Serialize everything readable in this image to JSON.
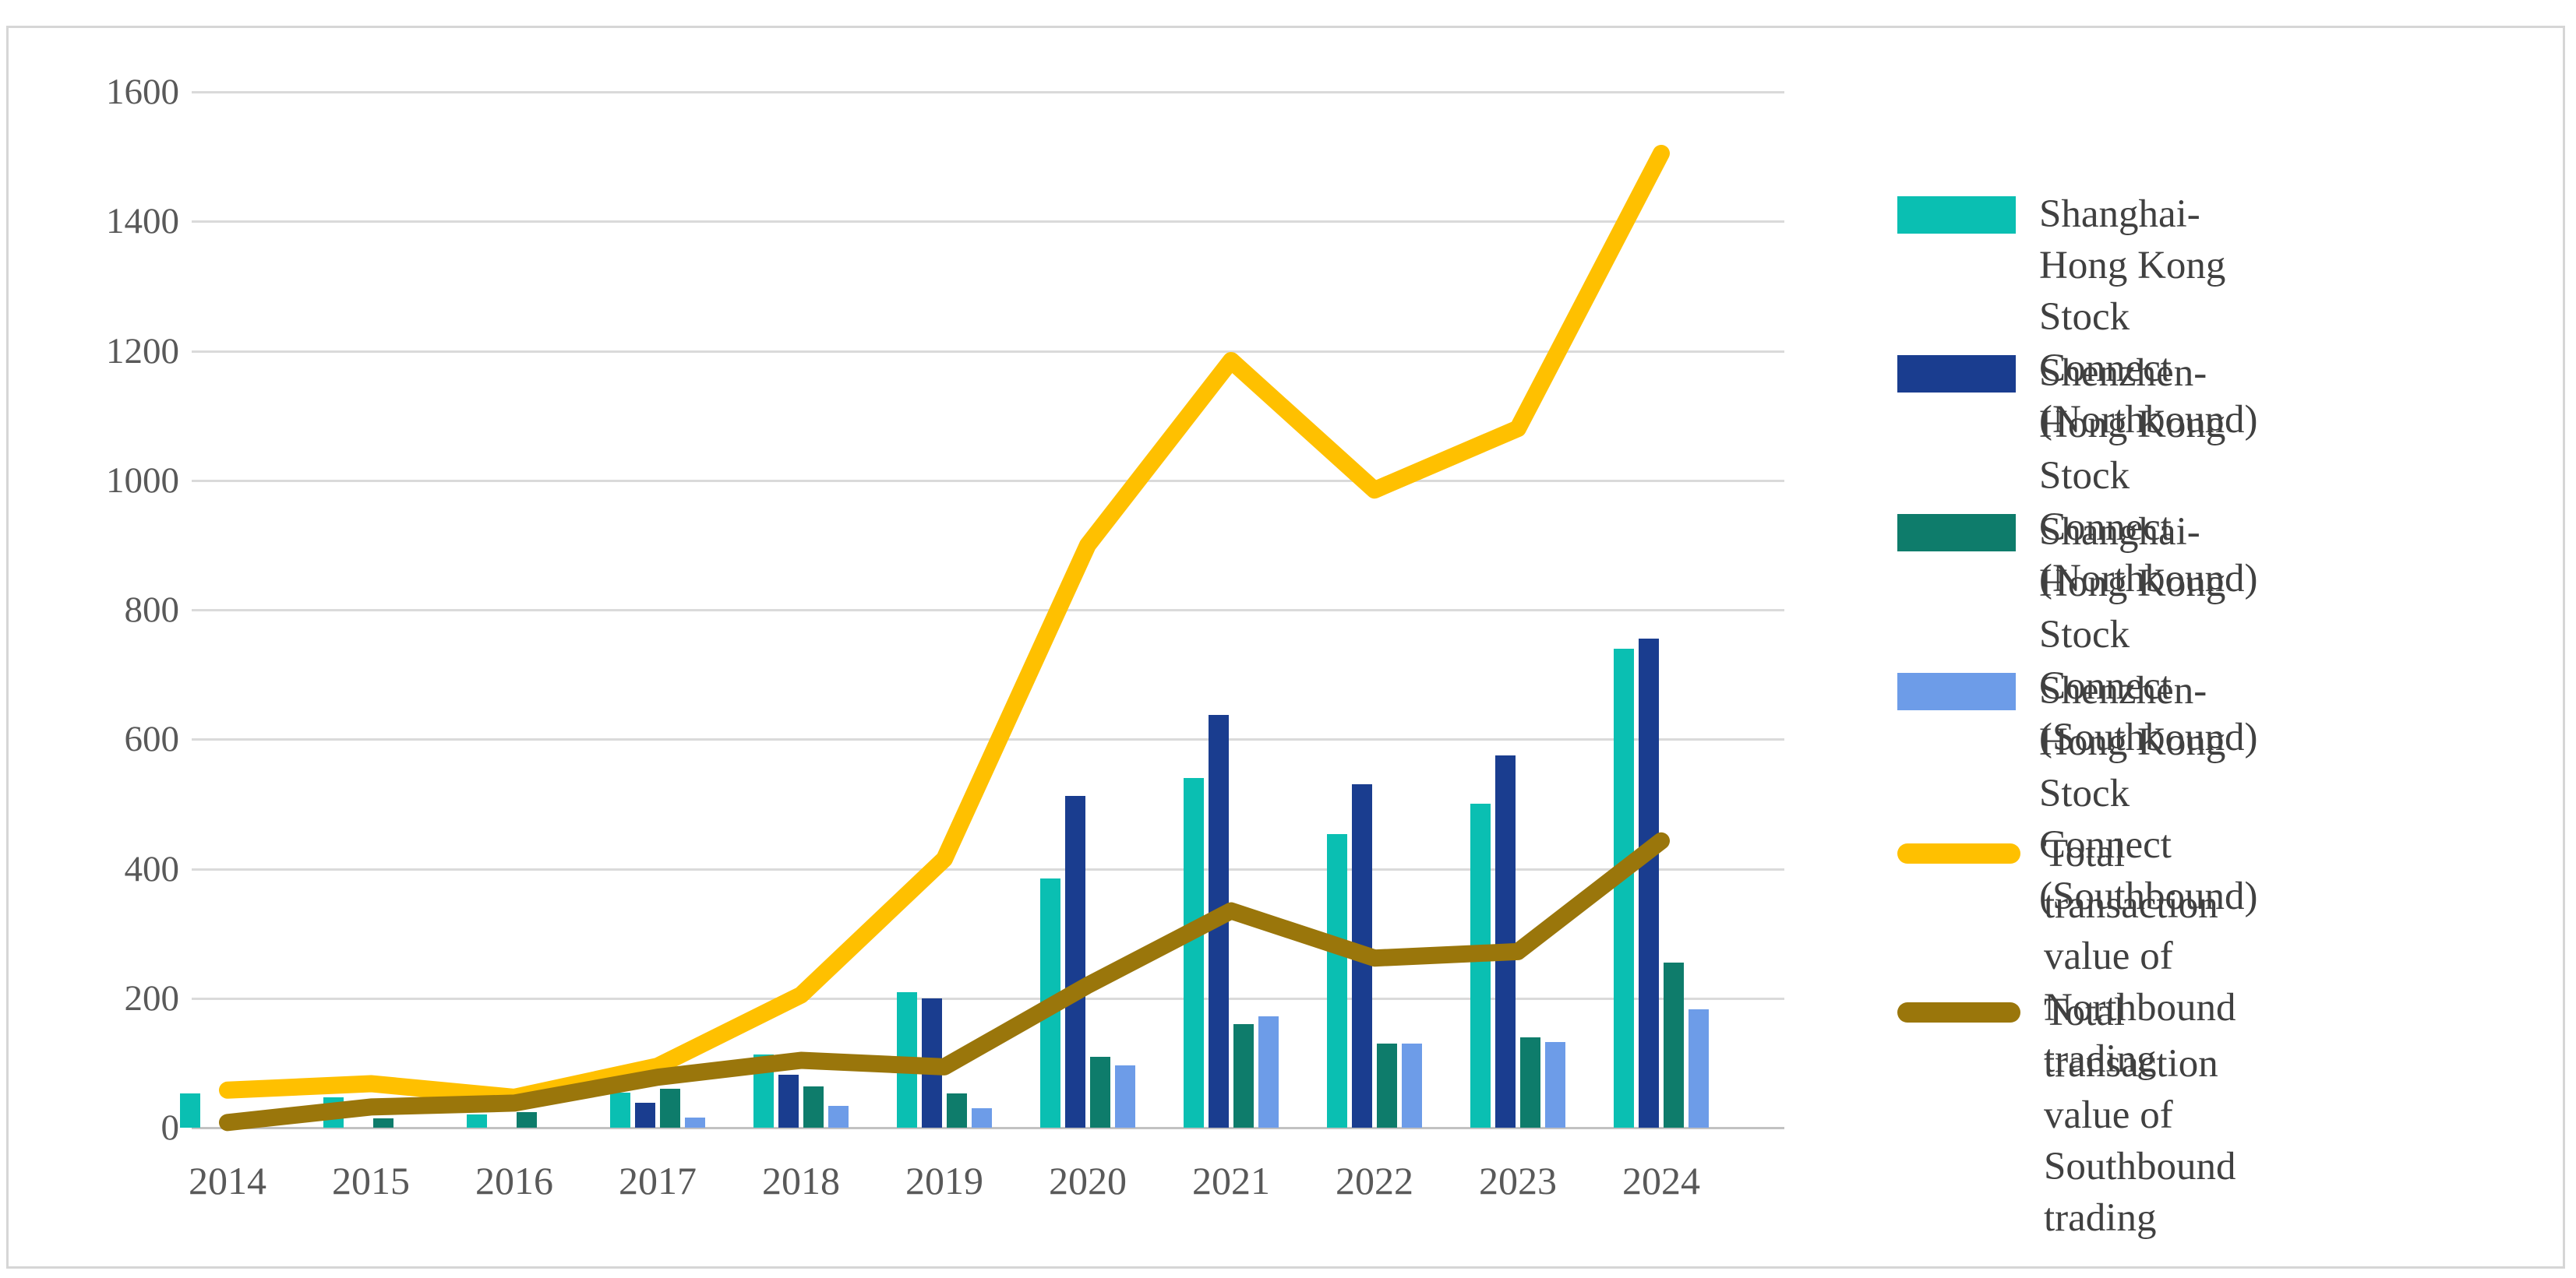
{
  "chart_data": {
    "type": "combo-bar-line",
    "title": "",
    "xlabel": "",
    "ylabel": "",
    "categories": [
      "2014",
      "2015",
      "2016",
      "2017",
      "2018",
      "2019",
      "2020",
      "2021",
      "2022",
      "2023",
      "2024"
    ],
    "ylim": [
      0,
      1600
    ],
    "ytick_step": 200,
    "ytick_labels": [
      "0",
      "200",
      "400",
      "600",
      "800",
      "1000",
      "1200",
      "1400",
      "1600"
    ],
    "grid": true,
    "legend_position": "right",
    "bar_series": [
      {
        "name": "Shanghai-Hong Kong Stock Connect (Northbound)",
        "color": "#0ABFB2",
        "values": [
          53,
          47,
          20,
          54,
          113,
          209,
          385,
          540,
          453,
          500,
          740
        ]
      },
      {
        "name": "Shenzhen-Hong Kong Stock Connect (Northbound)",
        "color": "#1A3D8F",
        "values": [
          null,
          null,
          null,
          39,
          82,
          200,
          512,
          637,
          531,
          575,
          756
        ]
      },
      {
        "name": "Shanghai-Hong Kong Stock Connect (Southbound)",
        "color": "#0E7C6B",
        "values": [
          null,
          15,
          24,
          60,
          64,
          53,
          109,
          160,
          130,
          140,
          255
        ]
      },
      {
        "name": "Shenzhen-Hong Kong Stock Connect (Southbound)",
        "color": "#6D9CE8",
        "values": [
          null,
          null,
          null,
          16,
          34,
          30,
          96,
          172,
          130,
          132,
          183
        ]
      }
    ],
    "line_series": [
      {
        "name": "Total transaction value of Northbound trading",
        "color": "#FFC000",
        "values": [
          58,
          68,
          47,
          95,
          205,
          415,
          900,
          1185,
          985,
          1080,
          1505
        ]
      },
      {
        "name": "Total transaction value of Southbound trading",
        "color": "#9A760B",
        "values": [
          8,
          32,
          38,
          78,
          104,
          94,
          220,
          335,
          262,
          272,
          443
        ]
      }
    ]
  },
  "colors": {
    "gridline": "#DADADA",
    "axis": "#C2C2C2",
    "tick_text": "#595959",
    "legend_text": "#404040",
    "frame": "#D6D6D6",
    "background": "#FFFFFF"
  }
}
